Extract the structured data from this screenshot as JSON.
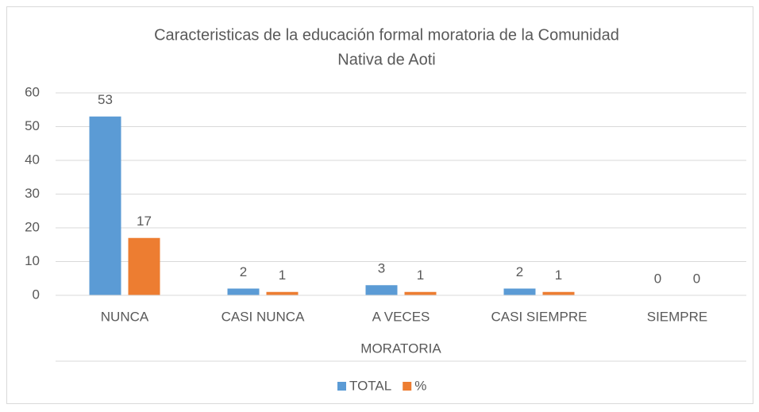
{
  "chart_data": {
    "type": "bar",
    "title": [
      "Caracteristicas  de la educación formal moratoria de la  Comunidad",
      "Nativa  de Aoti"
    ],
    "categories": [
      "NUNCA",
      "CASI NUNCA",
      "A VECES",
      "CASI SIEMPRE",
      "SIEMPRE"
    ],
    "series": [
      {
        "name": "TOTAL",
        "color": "#5b9bd5",
        "values": [
          53,
          2,
          3,
          2,
          0
        ]
      },
      {
        "name": "%",
        "color": "#ed7d31",
        "values": [
          17,
          1,
          1,
          1,
          0
        ]
      }
    ],
    "xlabel": "MORATORIA",
    "ylim": [
      0,
      60
    ],
    "yticks": [
      0,
      10,
      20,
      30,
      40,
      50,
      60
    ],
    "grid": true,
    "legend": "bottom"
  }
}
